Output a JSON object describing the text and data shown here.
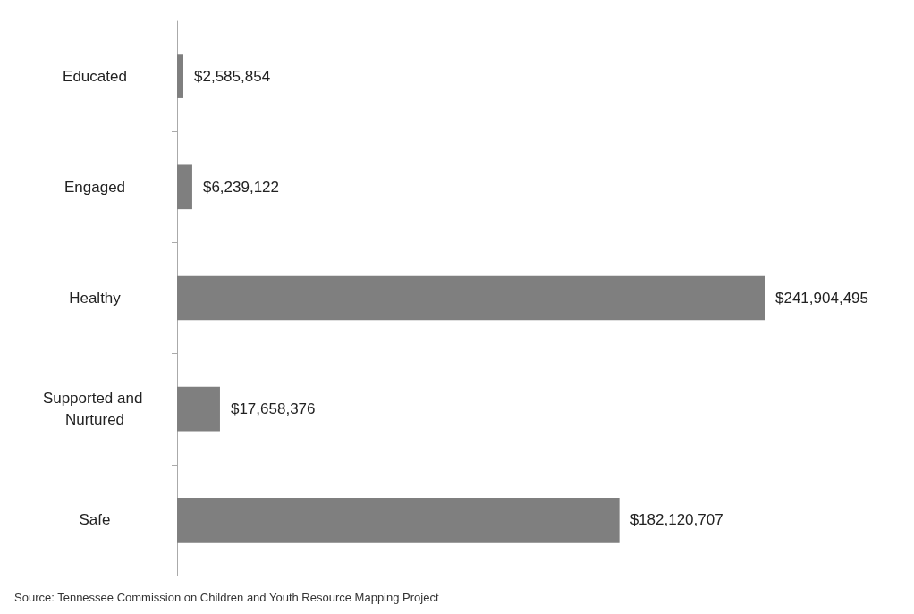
{
  "chart_data": {
    "type": "bar",
    "orientation": "horizontal",
    "categories": [
      "Educated",
      "Engaged",
      "Healthy",
      "Supported and Nurtured",
      "Safe"
    ],
    "values": [
      2585854,
      6239122,
      241904495,
      17658376,
      182120707
    ],
    "value_labels": [
      "$2,585,854",
      "$6,239,122",
      "$241,904,495",
      "$17,658,376",
      "$182,120,707"
    ],
    "color": "#7f7f7f",
    "annotations": [
      "Source: Tennessee Commission on Children and Youth Resource Mapping Project"
    ]
  }
}
